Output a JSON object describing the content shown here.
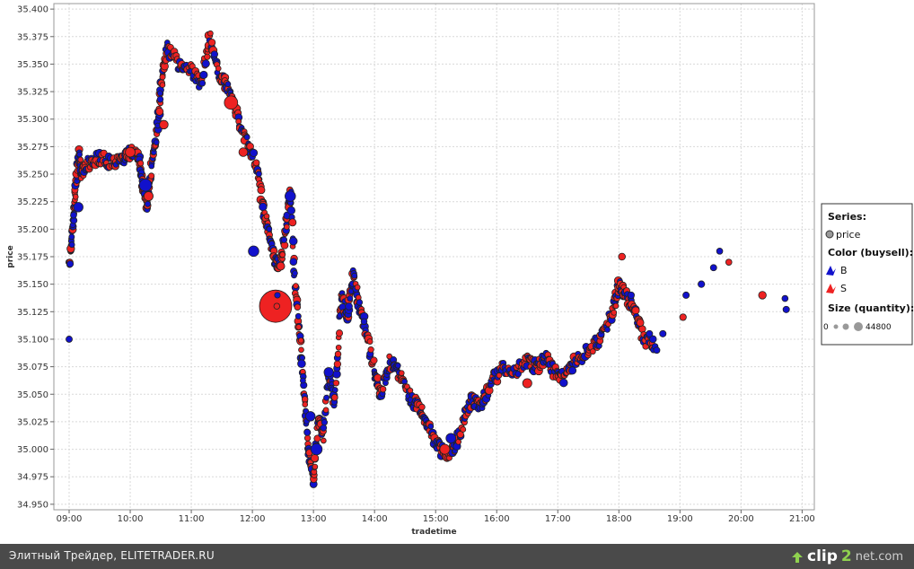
{
  "chart_data": {
    "type": "scatter",
    "title": "",
    "xlabel": "tradetime",
    "ylabel": "price",
    "xlim": [
      8.75,
      21.2
    ],
    "ylim": [
      34.945,
      35.405
    ],
    "x_ticks": [
      "09:00",
      "10:00",
      "11:00",
      "12:00",
      "13:00",
      "14:00",
      "15:00",
      "16:00",
      "17:00",
      "18:00",
      "19:00",
      "20:00",
      "21:00"
    ],
    "y_ticks": [
      "34.950",
      "34.975",
      "35.000",
      "35.025",
      "35.050",
      "35.075",
      "35.100",
      "35.125",
      "35.150",
      "35.175",
      "35.200",
      "35.225",
      "35.250",
      "35.275",
      "35.300",
      "35.325",
      "35.350",
      "35.375",
      "35.400"
    ],
    "grid": true,
    "colors": {
      "B": "#1111cc",
      "S": "#ee2222",
      "outline": "#222222",
      "grid": "#d9d9d9"
    },
    "size_range": [
      0,
      44800
    ],
    "price_path": [
      [
        9.0,
        35.165
      ],
      [
        9.05,
        35.2
      ],
      [
        9.1,
        35.23
      ],
      [
        9.15,
        35.27
      ],
      [
        9.2,
        35.25
      ],
      [
        9.3,
        35.26
      ],
      [
        9.5,
        35.265
      ],
      [
        9.7,
        35.26
      ],
      [
        9.9,
        35.265
      ],
      [
        10.0,
        35.27
      ],
      [
        10.15,
        35.265
      ],
      [
        10.2,
        35.24
      ],
      [
        10.28,
        35.22
      ],
      [
        10.35,
        35.26
      ],
      [
        10.45,
        35.29
      ],
      [
        10.5,
        35.33
      ],
      [
        10.6,
        35.365
      ],
      [
        10.8,
        35.35
      ],
      [
        11.0,
        35.345
      ],
      [
        11.15,
        35.33
      ],
      [
        11.3,
        35.375
      ],
      [
        11.45,
        35.34
      ],
      [
        11.6,
        35.33
      ],
      [
        11.75,
        35.305
      ],
      [
        11.9,
        35.28
      ],
      [
        12.05,
        35.26
      ],
      [
        12.15,
        35.23
      ],
      [
        12.25,
        35.2
      ],
      [
        12.35,
        35.175
      ],
      [
        12.45,
        35.165
      ],
      [
        12.55,
        35.2
      ],
      [
        12.62,
        35.24
      ],
      [
        12.7,
        35.15
      ],
      [
        12.78,
        35.1
      ],
      [
        12.85,
        35.05
      ],
      [
        12.92,
        35.0
      ],
      [
        13.0,
        34.97
      ],
      [
        13.08,
        35.03
      ],
      [
        13.15,
        35.01
      ],
      [
        13.25,
        35.07
      ],
      [
        13.35,
        35.04
      ],
      [
        13.45,
        35.14
      ],
      [
        13.55,
        35.12
      ],
      [
        13.65,
        35.16
      ],
      [
        13.75,
        35.13
      ],
      [
        13.85,
        35.11
      ],
      [
        14.0,
        35.07
      ],
      [
        14.1,
        35.05
      ],
      [
        14.25,
        35.08
      ],
      [
        14.4,
        35.07
      ],
      [
        14.55,
        35.05
      ],
      [
        14.7,
        35.04
      ],
      [
        14.85,
        35.025
      ],
      [
        15.0,
        35.005
      ],
      [
        15.15,
        34.995
      ],
      [
        15.3,
        35.0
      ],
      [
        15.45,
        35.025
      ],
      [
        15.6,
        35.045
      ],
      [
        15.75,
        35.04
      ],
      [
        15.9,
        35.06
      ],
      [
        16.1,
        35.075
      ],
      [
        16.3,
        35.07
      ],
      [
        16.5,
        35.08
      ],
      [
        16.65,
        35.075
      ],
      [
        16.8,
        35.085
      ],
      [
        16.95,
        35.07
      ],
      [
        17.1,
        35.065
      ],
      [
        17.3,
        35.08
      ],
      [
        17.5,
        35.09
      ],
      [
        17.7,
        35.1
      ],
      [
        17.9,
        35.125
      ],
      [
        18.0,
        35.15
      ],
      [
        18.1,
        35.14
      ],
      [
        18.25,
        35.13
      ],
      [
        18.4,
        35.1
      ],
      [
        18.6,
        35.095
      ]
    ],
    "late_points": [
      [
        18.05,
        35.175,
        "S",
        600
      ],
      [
        18.2,
        35.14,
        "B",
        500
      ],
      [
        18.35,
        35.115,
        "S",
        700
      ],
      [
        18.5,
        35.105,
        "B",
        450
      ],
      [
        18.62,
        35.09,
        "B",
        400
      ],
      [
        18.72,
        35.105,
        "B",
        450
      ],
      [
        19.05,
        35.12,
        "S",
        500
      ],
      [
        19.1,
        35.14,
        "B",
        450
      ],
      [
        19.35,
        35.15,
        "B",
        500
      ],
      [
        19.55,
        35.165,
        "B",
        400
      ],
      [
        19.65,
        35.18,
        "B",
        350
      ],
      [
        19.8,
        35.17,
        "S",
        350
      ],
      [
        20.35,
        35.14,
        "S",
        900
      ],
      [
        20.72,
        35.137,
        "B",
        350
      ],
      [
        20.74,
        35.127,
        "B",
        450
      ],
      [
        9.0,
        35.1,
        "B",
        400
      ]
    ],
    "big_points": [
      [
        12.38,
        35.13,
        "S",
        44800
      ],
      [
        10.25,
        35.24,
        "B",
        4200
      ],
      [
        11.65,
        35.315,
        "S",
        5200
      ],
      [
        12.02,
        35.18,
        "B",
        2600
      ],
      [
        12.62,
        35.23,
        "B",
        2600
      ],
      [
        13.05,
        35.0,
        "B",
        3200
      ],
      [
        12.95,
        35.03,
        "B",
        1900
      ],
      [
        15.15,
        35.0,
        "S",
        2200
      ],
      [
        15.25,
        35.01,
        "B",
        2100
      ],
      [
        16.5,
        35.06,
        "S",
        1700
      ],
      [
        13.25,
        35.07,
        "B",
        1800
      ],
      [
        9.15,
        35.22,
        "B",
        1900
      ],
      [
        10.0,
        35.27,
        "S",
        2100
      ],
      [
        10.3,
        35.23,
        "S",
        1700
      ],
      [
        10.55,
        35.295,
        "S",
        1400
      ],
      [
        11.85,
        35.27,
        "S",
        1400
      ]
    ],
    "legend": {
      "series_title": "Series:",
      "series_item": "price",
      "color_title": "Color (buysell):",
      "color_items": [
        "B",
        "S"
      ],
      "size_title": "Size (quantity):",
      "size_min": "0",
      "size_max": "44800",
      "placement": "right"
    }
  },
  "footer": {
    "caption": "Элитный Трейдер, ELITETRADER.RU",
    "brand_a": "clip",
    "brand_b": "2",
    "brand_c": "net.com"
  }
}
